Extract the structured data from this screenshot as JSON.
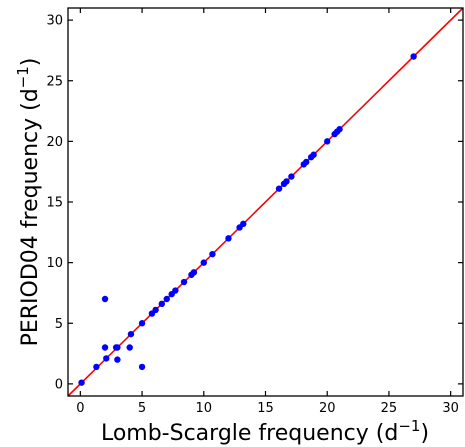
{
  "chart_data": {
    "type": "scatter",
    "xlabel": "Lomb-Scargle frequency (d",
    "ylabel": "PERIOD04 frequency (d",
    "label_exponent": "−1",
    "label_close": ")",
    "xlim": [
      -1,
      31
    ],
    "ylim": [
      -1,
      31
    ],
    "xticks": [
      0,
      5,
      10,
      15,
      20,
      25,
      30
    ],
    "yticks": [
      0,
      5,
      10,
      15,
      20,
      25,
      30
    ],
    "colors": {
      "points": "#0000ff",
      "fit_line": "#ff0000"
    },
    "fit_line": {
      "from": [
        -1,
        -1
      ],
      "to": [
        31,
        31
      ]
    },
    "points": [
      {
        "x": 0.1,
        "y": 0.1
      },
      {
        "x": 1.3,
        "y": 1.4
      },
      {
        "x": 2.0,
        "y": 7.0
      },
      {
        "x": 2.0,
        "y": 3.0
      },
      {
        "x": 2.1,
        "y": 2.1
      },
      {
        "x": 2.9,
        "y": 3.0
      },
      {
        "x": 3.0,
        "y": 3.0
      },
      {
        "x": 3.0,
        "y": 2.0
      },
      {
        "x": 4.0,
        "y": 3.0
      },
      {
        "x": 4.1,
        "y": 4.1
      },
      {
        "x": 5.0,
        "y": 5.0
      },
      {
        "x": 5.0,
        "y": 1.4
      },
      {
        "x": 5.8,
        "y": 5.8
      },
      {
        "x": 6.1,
        "y": 6.1
      },
      {
        "x": 6.6,
        "y": 6.6
      },
      {
        "x": 7.0,
        "y": 7.0
      },
      {
        "x": 7.4,
        "y": 7.4
      },
      {
        "x": 7.7,
        "y": 7.7
      },
      {
        "x": 8.4,
        "y": 8.4
      },
      {
        "x": 9.0,
        "y": 9.0
      },
      {
        "x": 9.2,
        "y": 9.2
      },
      {
        "x": 10.0,
        "y": 10.0
      },
      {
        "x": 10.7,
        "y": 10.7
      },
      {
        "x": 12.0,
        "y": 12.0
      },
      {
        "x": 12.9,
        "y": 12.9
      },
      {
        "x": 13.2,
        "y": 13.2
      },
      {
        "x": 16.1,
        "y": 16.1
      },
      {
        "x": 16.5,
        "y": 16.5
      },
      {
        "x": 16.7,
        "y": 16.7
      },
      {
        "x": 17.1,
        "y": 17.1
      },
      {
        "x": 18.1,
        "y": 18.1
      },
      {
        "x": 18.3,
        "y": 18.3
      },
      {
        "x": 18.7,
        "y": 18.7
      },
      {
        "x": 18.9,
        "y": 18.9
      },
      {
        "x": 20.0,
        "y": 20.0
      },
      {
        "x": 20.6,
        "y": 20.6
      },
      {
        "x": 20.8,
        "y": 20.8
      },
      {
        "x": 21.0,
        "y": 21.0
      },
      {
        "x": 27.0,
        "y": 27.0
      }
    ]
  }
}
